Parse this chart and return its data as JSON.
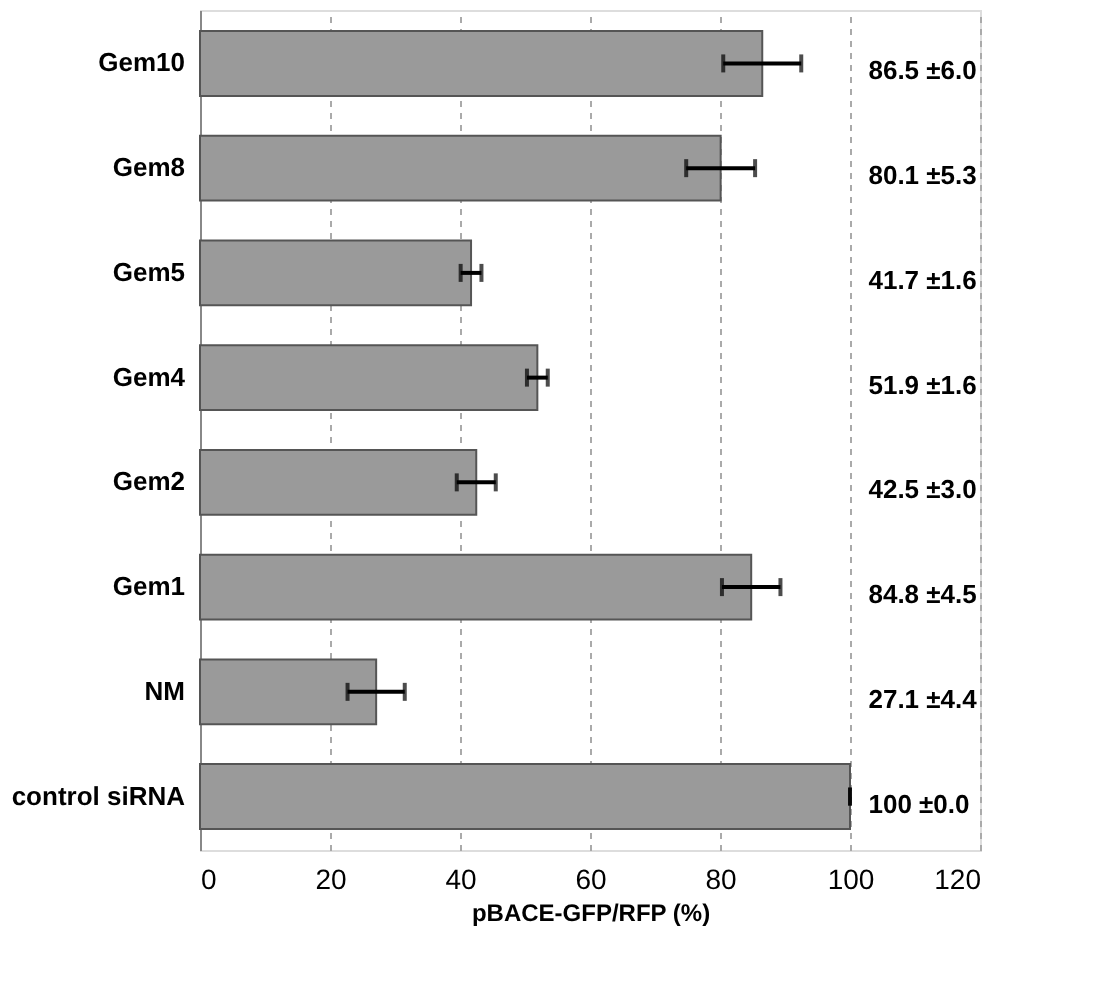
{
  "chart_data": {
    "type": "bar",
    "orientation": "horizontal",
    "xlabel": "pBACE-GFP/RFP (%)",
    "categories": [
      "Gem10",
      "Gem8",
      "Gem5",
      "Gem4",
      "Gem2",
      "Gem1",
      "NM",
      "control siRNA"
    ],
    "values": [
      86.5,
      80.1,
      41.7,
      51.9,
      42.5,
      84.8,
      27.1,
      100
    ],
    "errors": [
      6.0,
      5.3,
      1.6,
      1.6,
      3.0,
      4.5,
      4.4,
      0.0
    ],
    "value_labels": [
      "86.5 ±6.0",
      "80.1 ±5.3",
      "41.7 ±1.6",
      "51.9 ±1.6",
      "42.5 ±3.0",
      "84.8 ±4.5",
      "27.1 ±4.4",
      "100  ±0.0"
    ],
    "color": "#9a9a9a",
    "xlim": [
      0,
      120
    ],
    "xticks": [
      0,
      20,
      40,
      60,
      80,
      100,
      120
    ],
    "grid": "x"
  }
}
